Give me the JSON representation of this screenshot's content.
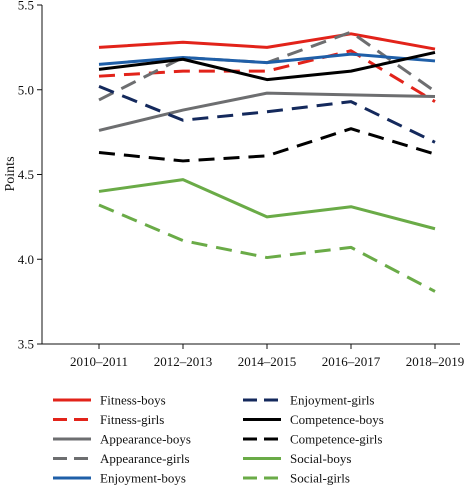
{
  "chart_data": {
    "type": "line",
    "title": "",
    "xlabel": "",
    "ylabel": "Points",
    "ylim": [
      3.5,
      5.5
    ],
    "y_ticks": [
      "3.5",
      "4.0",
      "4.5",
      "5.0",
      "5.5"
    ],
    "categories": [
      "2010–2011",
      "2012–2013",
      "2014–2015",
      "2016–2017",
      "2018–2019"
    ],
    "grid": false,
    "legend_position": "bottom",
    "series": [
      {
        "name": "Fitness-boys",
        "color": "#e2231a",
        "dash": "solid",
        "values": [
          5.25,
          5.28,
          5.25,
          5.33,
          5.24
        ]
      },
      {
        "name": "Fitness-girls",
        "color": "#e2231a",
        "dash": "dashed",
        "values": [
          5.08,
          5.11,
          5.11,
          5.23,
          4.93
        ]
      },
      {
        "name": "Appearance-boys",
        "color": "#6d6e70",
        "dash": "solid",
        "values": [
          4.76,
          4.88,
          4.98,
          4.97,
          4.96
        ]
      },
      {
        "name": "Appearance-girls",
        "color": "#6d6e70",
        "dash": "dashed",
        "values": [
          4.94,
          5.19,
          5.16,
          5.34,
          4.99
        ]
      },
      {
        "name": "Enjoyment-boys",
        "color": "#1f5fa8",
        "dash": "solid",
        "values": [
          5.15,
          5.19,
          5.16,
          5.21,
          5.17
        ]
      },
      {
        "name": "Enjoyment-girls",
        "color": "#14295c",
        "dash": "dashed",
        "values": [
          5.02,
          4.82,
          4.87,
          4.93,
          4.69
        ]
      },
      {
        "name": "Competence-boys",
        "color": "#000000",
        "dash": "solid",
        "values": [
          5.12,
          5.18,
          5.06,
          5.11,
          5.22
        ]
      },
      {
        "name": "Competence-girls",
        "color": "#000000",
        "dash": "dashed",
        "values": [
          4.63,
          4.58,
          4.61,
          4.77,
          4.62
        ]
      },
      {
        "name": "Social-boys",
        "color": "#6aab47",
        "dash": "solid",
        "values": [
          4.4,
          4.47,
          4.25,
          4.31,
          4.18
        ]
      },
      {
        "name": "Social-girls",
        "color": "#6aab47",
        "dash": "dashed",
        "values": [
          4.32,
          4.11,
          4.01,
          4.07,
          3.81
        ]
      }
    ]
  }
}
